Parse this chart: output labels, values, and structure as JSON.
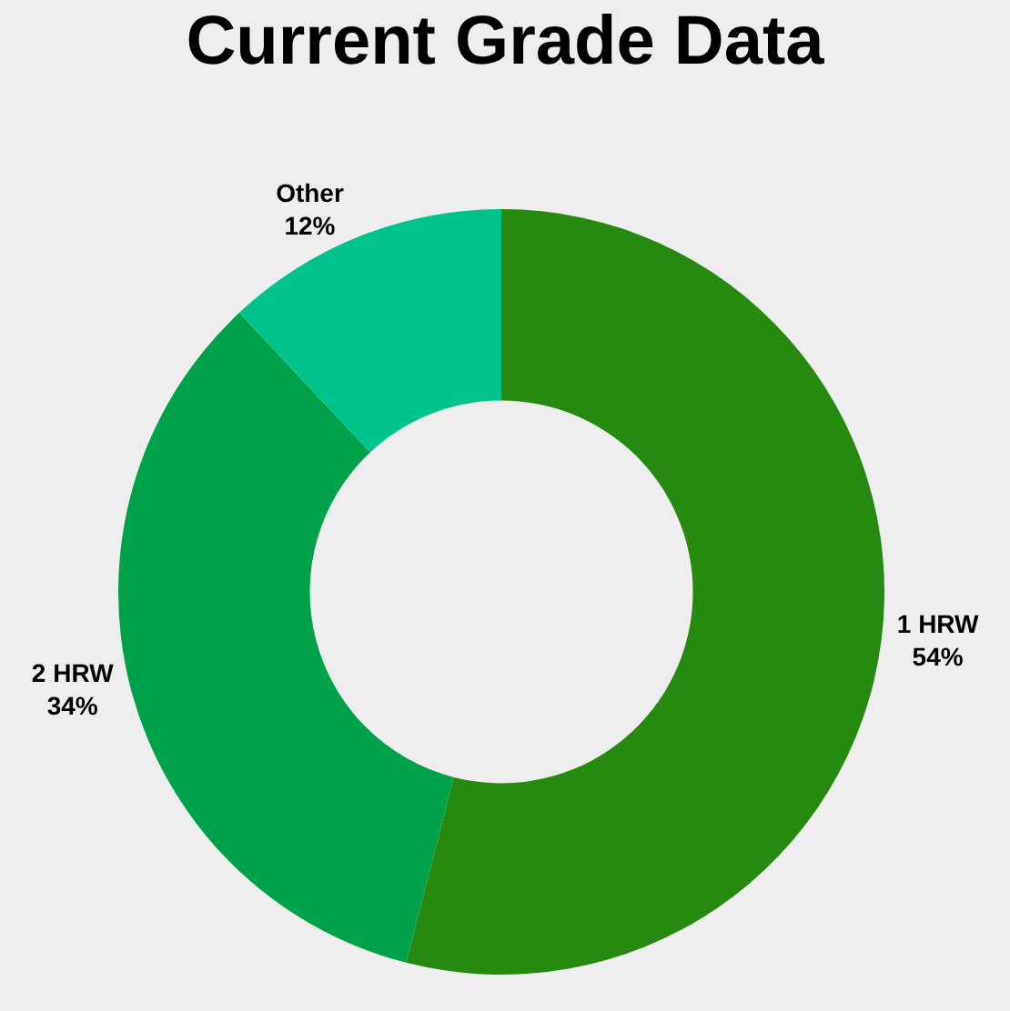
{
  "chart_data": {
    "type": "donut",
    "title": "Current Grade Data",
    "categories": [
      "1 HRW",
      "2 HRW",
      "Other"
    ],
    "values": [
      54,
      34,
      12
    ],
    "value_labels": [
      "54%",
      "34%",
      "12%"
    ],
    "colors": [
      "#278a10",
      "#00a14b",
      "#00c48c"
    ],
    "legend": false
  }
}
